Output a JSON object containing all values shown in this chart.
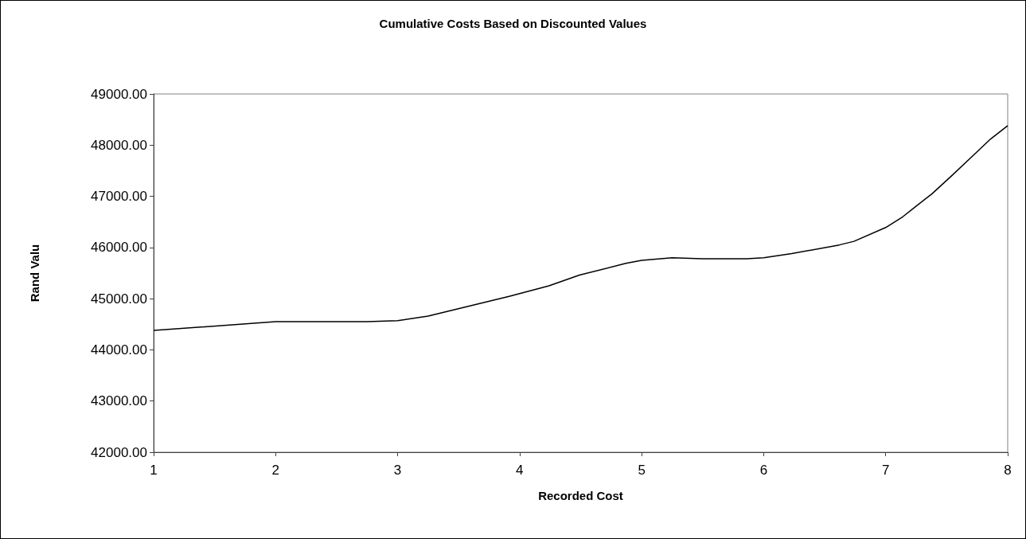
{
  "chart_data": {
    "type": "line",
    "title": "Cumulative Costs Based on Discounted Values",
    "xlabel": "Recorded Cost",
    "ylabel": "Rand Valu",
    "x": [
      1,
      2,
      2.75,
      3,
      3.25,
      3.92,
      4.24,
      4.49,
      4.87,
      5,
      5.25,
      5.5,
      5.86,
      6,
      6.23,
      6.62,
      6.74,
      7,
      7.14,
      7.24,
      7.38,
      7.54,
      7.7,
      7.86,
      8
    ],
    "series": [
      {
        "color": "#000000",
        "values": [
          44380,
          44550,
          44550,
          44570,
          44660,
          45050,
          45250,
          45460,
          45690,
          45750,
          45800,
          45780,
          45780,
          45800,
          45880,
          46050,
          46120,
          46390,
          46600,
          46790,
          47050,
          47400,
          47760,
          48120,
          48380
        ]
      }
    ],
    "xlim": [
      1,
      8
    ],
    "xticks": [
      1,
      2,
      3,
      4,
      5,
      6,
      7,
      8
    ],
    "ylim": [
      42000,
      49000
    ],
    "yticks": [
      {
        "value": 42000,
        "label": "42000.00"
      },
      {
        "value": 43000,
        "label": "43000.00"
      },
      {
        "value": 44000,
        "label": "44000.00"
      },
      {
        "value": 45000,
        "label": "45000.00"
      },
      {
        "value": 46000,
        "label": "46000.00"
      },
      {
        "value": 47000,
        "label": "47000.00"
      },
      {
        "value": 48000,
        "label": "48000.00"
      },
      {
        "value": 49000,
        "label": "49000.00"
      }
    ],
    "grid": false,
    "marker": "none",
    "line_style": "solid"
  }
}
